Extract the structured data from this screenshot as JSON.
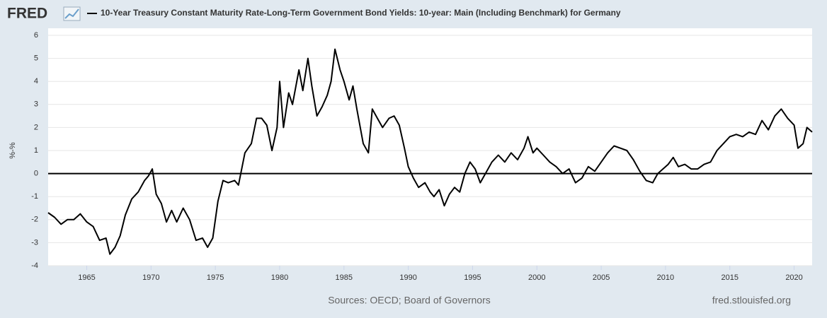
{
  "logo": "FRED",
  "chart_data": {
    "type": "line",
    "title": "10-Year Treasury Constant Maturity Rate-Long-Term Government Bond Yields: 10-year: Main (Including Benchmark) for Germany",
    "y_label": "%-%",
    "source": "Sources: OECD; Board of Governors",
    "credit": "fred.stlouisfed.org",
    "x": [
      1962.0,
      1962.5,
      1963.0,
      1963.5,
      1964.0,
      1964.5,
      1965.0,
      1965.5,
      1966.0,
      1966.5,
      1966.8,
      1967.2,
      1967.6,
      1968.0,
      1968.5,
      1969.0,
      1969.5,
      1969.8,
      1970.1,
      1970.4,
      1970.8,
      1971.2,
      1971.6,
      1972.0,
      1972.5,
      1973.0,
      1973.5,
      1974.0,
      1974.4,
      1974.8,
      1975.2,
      1975.6,
      1976.0,
      1976.5,
      1976.8,
      1977.3,
      1977.8,
      1978.2,
      1978.6,
      1979.0,
      1979.4,
      1979.8,
      1980.0,
      1980.3,
      1980.7,
      1981.0,
      1981.5,
      1981.8,
      1982.2,
      1982.5,
      1982.9,
      1983.3,
      1983.7,
      1984.0,
      1984.3,
      1984.7,
      1985.0,
      1985.4,
      1985.7,
      1986.0,
      1986.5,
      1986.9,
      1987.2,
      1987.6,
      1988.0,
      1988.5,
      1988.9,
      1989.3,
      1989.7,
      1990.0,
      1990.4,
      1990.8,
      1991.3,
      1991.7,
      1992.0,
      1992.4,
      1992.8,
      1993.2,
      1993.6,
      1994.0,
      1994.4,
      1994.8,
      1995.2,
      1995.6,
      1996.0,
      1996.5,
      1997.0,
      1997.5,
      1998.0,
      1998.5,
      1999.0,
      1999.3,
      1999.7,
      2000.0,
      2000.5,
      2001.0,
      2001.5,
      2002.0,
      2002.5,
      2003.0,
      2003.5,
      2004.0,
      2004.5,
      2005.0,
      2005.5,
      2006.0,
      2006.5,
      2007.0,
      2007.5,
      2008.0,
      2008.5,
      2009.0,
      2009.4,
      2009.8,
      2010.2,
      2010.6,
      2011.0,
      2011.5,
      2012.0,
      2012.5,
      2013.0,
      2013.5,
      2014.0,
      2014.5,
      2015.0,
      2015.5,
      2016.0,
      2016.5,
      2017.0,
      2017.5,
      2018.0,
      2018.5,
      2019.0,
      2019.5,
      2020.0,
      2020.3,
      2020.7,
      2021.0,
      2021.4
    ],
    "series": [
      {
        "name": "10-Year Treasury Constant Maturity Rate-Long-Term Government Bond Yields: 10-year: Main (Including Benchmark) for Germany",
        "color": "#000000",
        "values": [
          -1.7,
          -1.9,
          -2.2,
          -2.0,
          -2.0,
          -1.75,
          -2.1,
          -2.3,
          -2.9,
          -2.8,
          -3.5,
          -3.2,
          -2.7,
          -1.8,
          -1.1,
          -0.8,
          -0.3,
          -0.1,
          0.2,
          -0.9,
          -1.3,
          -2.1,
          -1.6,
          -2.1,
          -1.5,
          -2.0,
          -2.9,
          -2.8,
          -3.2,
          -2.8,
          -1.2,
          -0.3,
          -0.4,
          -0.3,
          -0.5,
          0.9,
          1.3,
          2.4,
          2.4,
          2.1,
          1.0,
          2.0,
          4.0,
          2.0,
          3.5,
          3.0,
          4.5,
          3.6,
          5.0,
          3.8,
          2.5,
          2.9,
          3.4,
          4.0,
          5.4,
          4.5,
          4.0,
          3.2,
          3.8,
          2.8,
          1.3,
          0.9,
          2.8,
          2.4,
          2.0,
          2.4,
          2.5,
          2.1,
          1.1,
          0.3,
          -0.2,
          -0.6,
          -0.4,
          -0.8,
          -1.0,
          -0.7,
          -1.4,
          -0.9,
          -0.6,
          -0.8,
          0.0,
          0.5,
          0.2,
          -0.4,
          0.0,
          0.5,
          0.8,
          0.5,
          0.9,
          0.6,
          1.1,
          1.6,
          0.9,
          1.1,
          0.8,
          0.5,
          0.3,
          0.0,
          0.2,
          -0.4,
          -0.2,
          0.3,
          0.1,
          0.5,
          0.9,
          1.2,
          1.1,
          1.0,
          0.6,
          0.1,
          -0.3,
          -0.4,
          0.0,
          0.2,
          0.4,
          0.7,
          0.3,
          0.4,
          0.2,
          0.2,
          0.4,
          0.5,
          1.0,
          1.3,
          1.6,
          1.7,
          1.6,
          1.8,
          1.7,
          2.3,
          1.9,
          2.5,
          2.8,
          2.4,
          2.1,
          1.1,
          1.3,
          2.0,
          1.8
        ]
      }
    ],
    "xlim": [
      1962,
      2021.4
    ],
    "xticks": [
      1965,
      1970,
      1975,
      1980,
      1985,
      1990,
      1995,
      2000,
      2005,
      2010,
      2015,
      2020
    ],
    "ylim": [
      -4,
      6
    ],
    "yticks": [
      -4,
      -3,
      -2,
      -1,
      0,
      1,
      2,
      3,
      4,
      5,
      6
    ],
    "grid": true
  }
}
